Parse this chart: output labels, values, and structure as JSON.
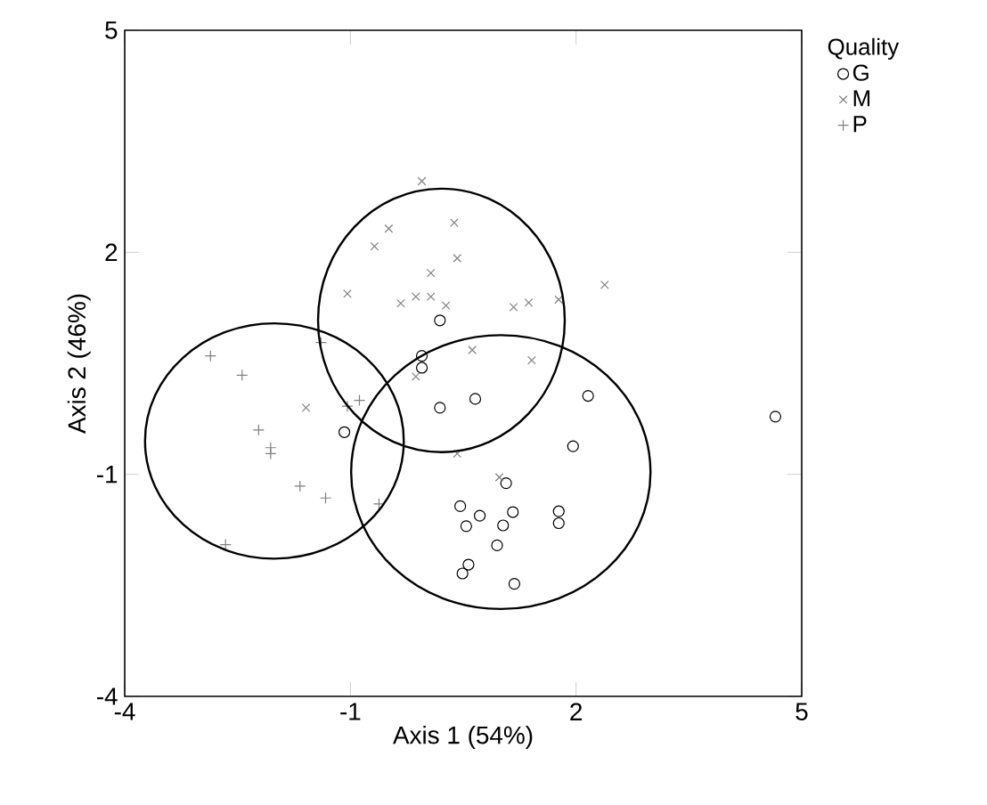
{
  "chart_data": {
    "type": "scatter",
    "xlabel": "Axis 1 (54%)",
    "ylabel": "Axis 2 (46%)",
    "legend_title": "Quality",
    "legend": "right",
    "xlim": [
      -4,
      5
    ],
    "ylim": [
      -4,
      5
    ],
    "xticks": [
      -4,
      -1,
      2,
      5
    ],
    "yticks": [
      -4,
      -1,
      2,
      5
    ],
    "grid": false,
    "series": [
      {
        "name": "G",
        "color": "#000000",
        "marker": "circle",
        "x": [
          0.19,
          0.66,
          2.16,
          4.65,
          1.96,
          1.07,
          0.46,
          0.72,
          1.16,
          0.54,
          1.03,
          1.77,
          1.77,
          0.95,
          0.57,
          0.49,
          1.18,
          -1.08,
          -0.05,
          -0.05,
          0.19
        ],
        "values": [
          -0.1,
          0.02,
          0.06,
          -0.22,
          -0.62,
          -1.12,
          -1.43,
          -1.56,
          -1.51,
          -1.7,
          -1.69,
          -1.5,
          -1.66,
          -1.96,
          -2.22,
          -2.34,
          -2.48,
          -0.43,
          0.6,
          0.44,
          1.08
        ]
      },
      {
        "name": "M",
        "color": "#808080",
        "marker": "cross",
        "x": [
          -0.05,
          0.38,
          -0.68,
          -0.49,
          0.42,
          0.07,
          -1.04,
          -0.33,
          -0.13,
          0.07,
          0.27,
          1.17,
          1.37,
          1.77,
          2.38,
          0.62,
          1.41,
          -0.13,
          -1.59,
          0.98,
          0.42
        ],
        "values": [
          2.96,
          2.4,
          2.08,
          2.32,
          1.92,
          1.72,
          1.44,
          1.31,
          1.4,
          1.4,
          1.28,
          1.26,
          1.32,
          1.36,
          1.56,
          0.68,
          0.54,
          0.32,
          -0.1,
          -1.04,
          -0.72
        ]
      },
      {
        "name": "P",
        "color": "#808080",
        "marker": "plus",
        "x": [
          -2.86,
          -2.44,
          -2.22,
          -2.06,
          -2.06,
          -1.67,
          -1.33,
          -2.66,
          -0.88,
          -1.39,
          -0.62,
          -1.04
        ],
        "values": [
          0.6,
          0.34,
          -0.4,
          -0.64,
          -0.72,
          -1.16,
          -1.32,
          -1.95,
          0.0,
          0.78,
          -1.4,
          -0.08
        ]
      }
    ]
  }
}
